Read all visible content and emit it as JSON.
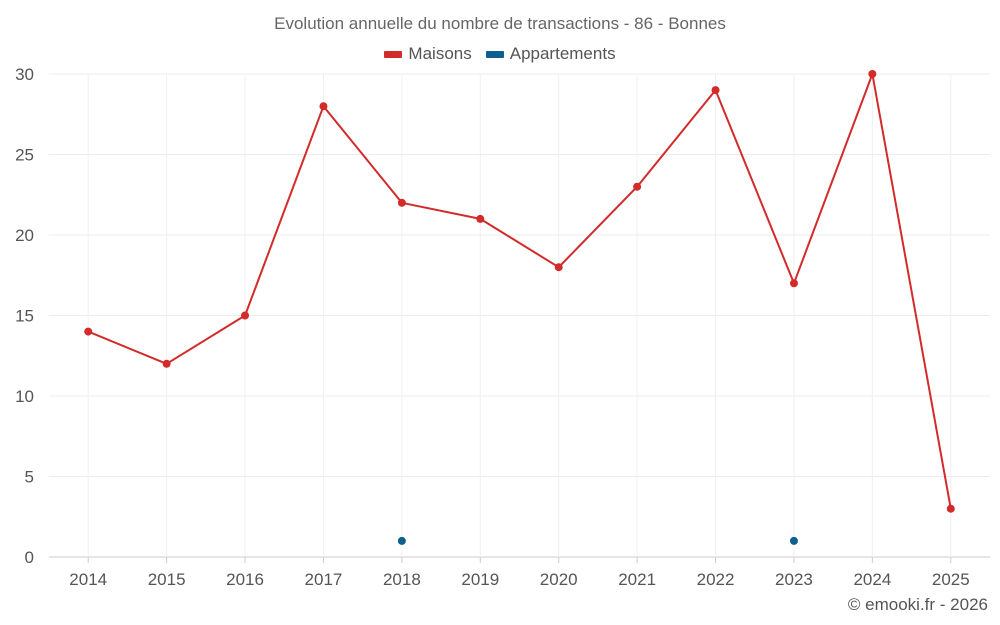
{
  "chart_data": {
    "type": "line",
    "title": "Evolution annuelle du nombre de transactions - 86 - Bonnes",
    "categories": [
      "2014",
      "2015",
      "2016",
      "2017",
      "2018",
      "2019",
      "2020",
      "2021",
      "2022",
      "2023",
      "2024",
      "2025"
    ],
    "series": [
      {
        "name": "Maisons",
        "color": "#d32a2a",
        "values": [
          14,
          12,
          15,
          28,
          22,
          21,
          18,
          23,
          29,
          17,
          30,
          3
        ]
      },
      {
        "name": "Appartements",
        "color": "#0c5f8f",
        "values": [
          null,
          null,
          null,
          null,
          1,
          null,
          null,
          null,
          null,
          1,
          null,
          null
        ]
      }
    ],
    "yticks": [
      "0",
      "5",
      "10",
      "15",
      "20",
      "25",
      "30"
    ],
    "ylim": [
      0,
      30
    ],
    "grid": true,
    "legend_position": "top-center"
  },
  "credit": "© emooki.fr - 2026"
}
